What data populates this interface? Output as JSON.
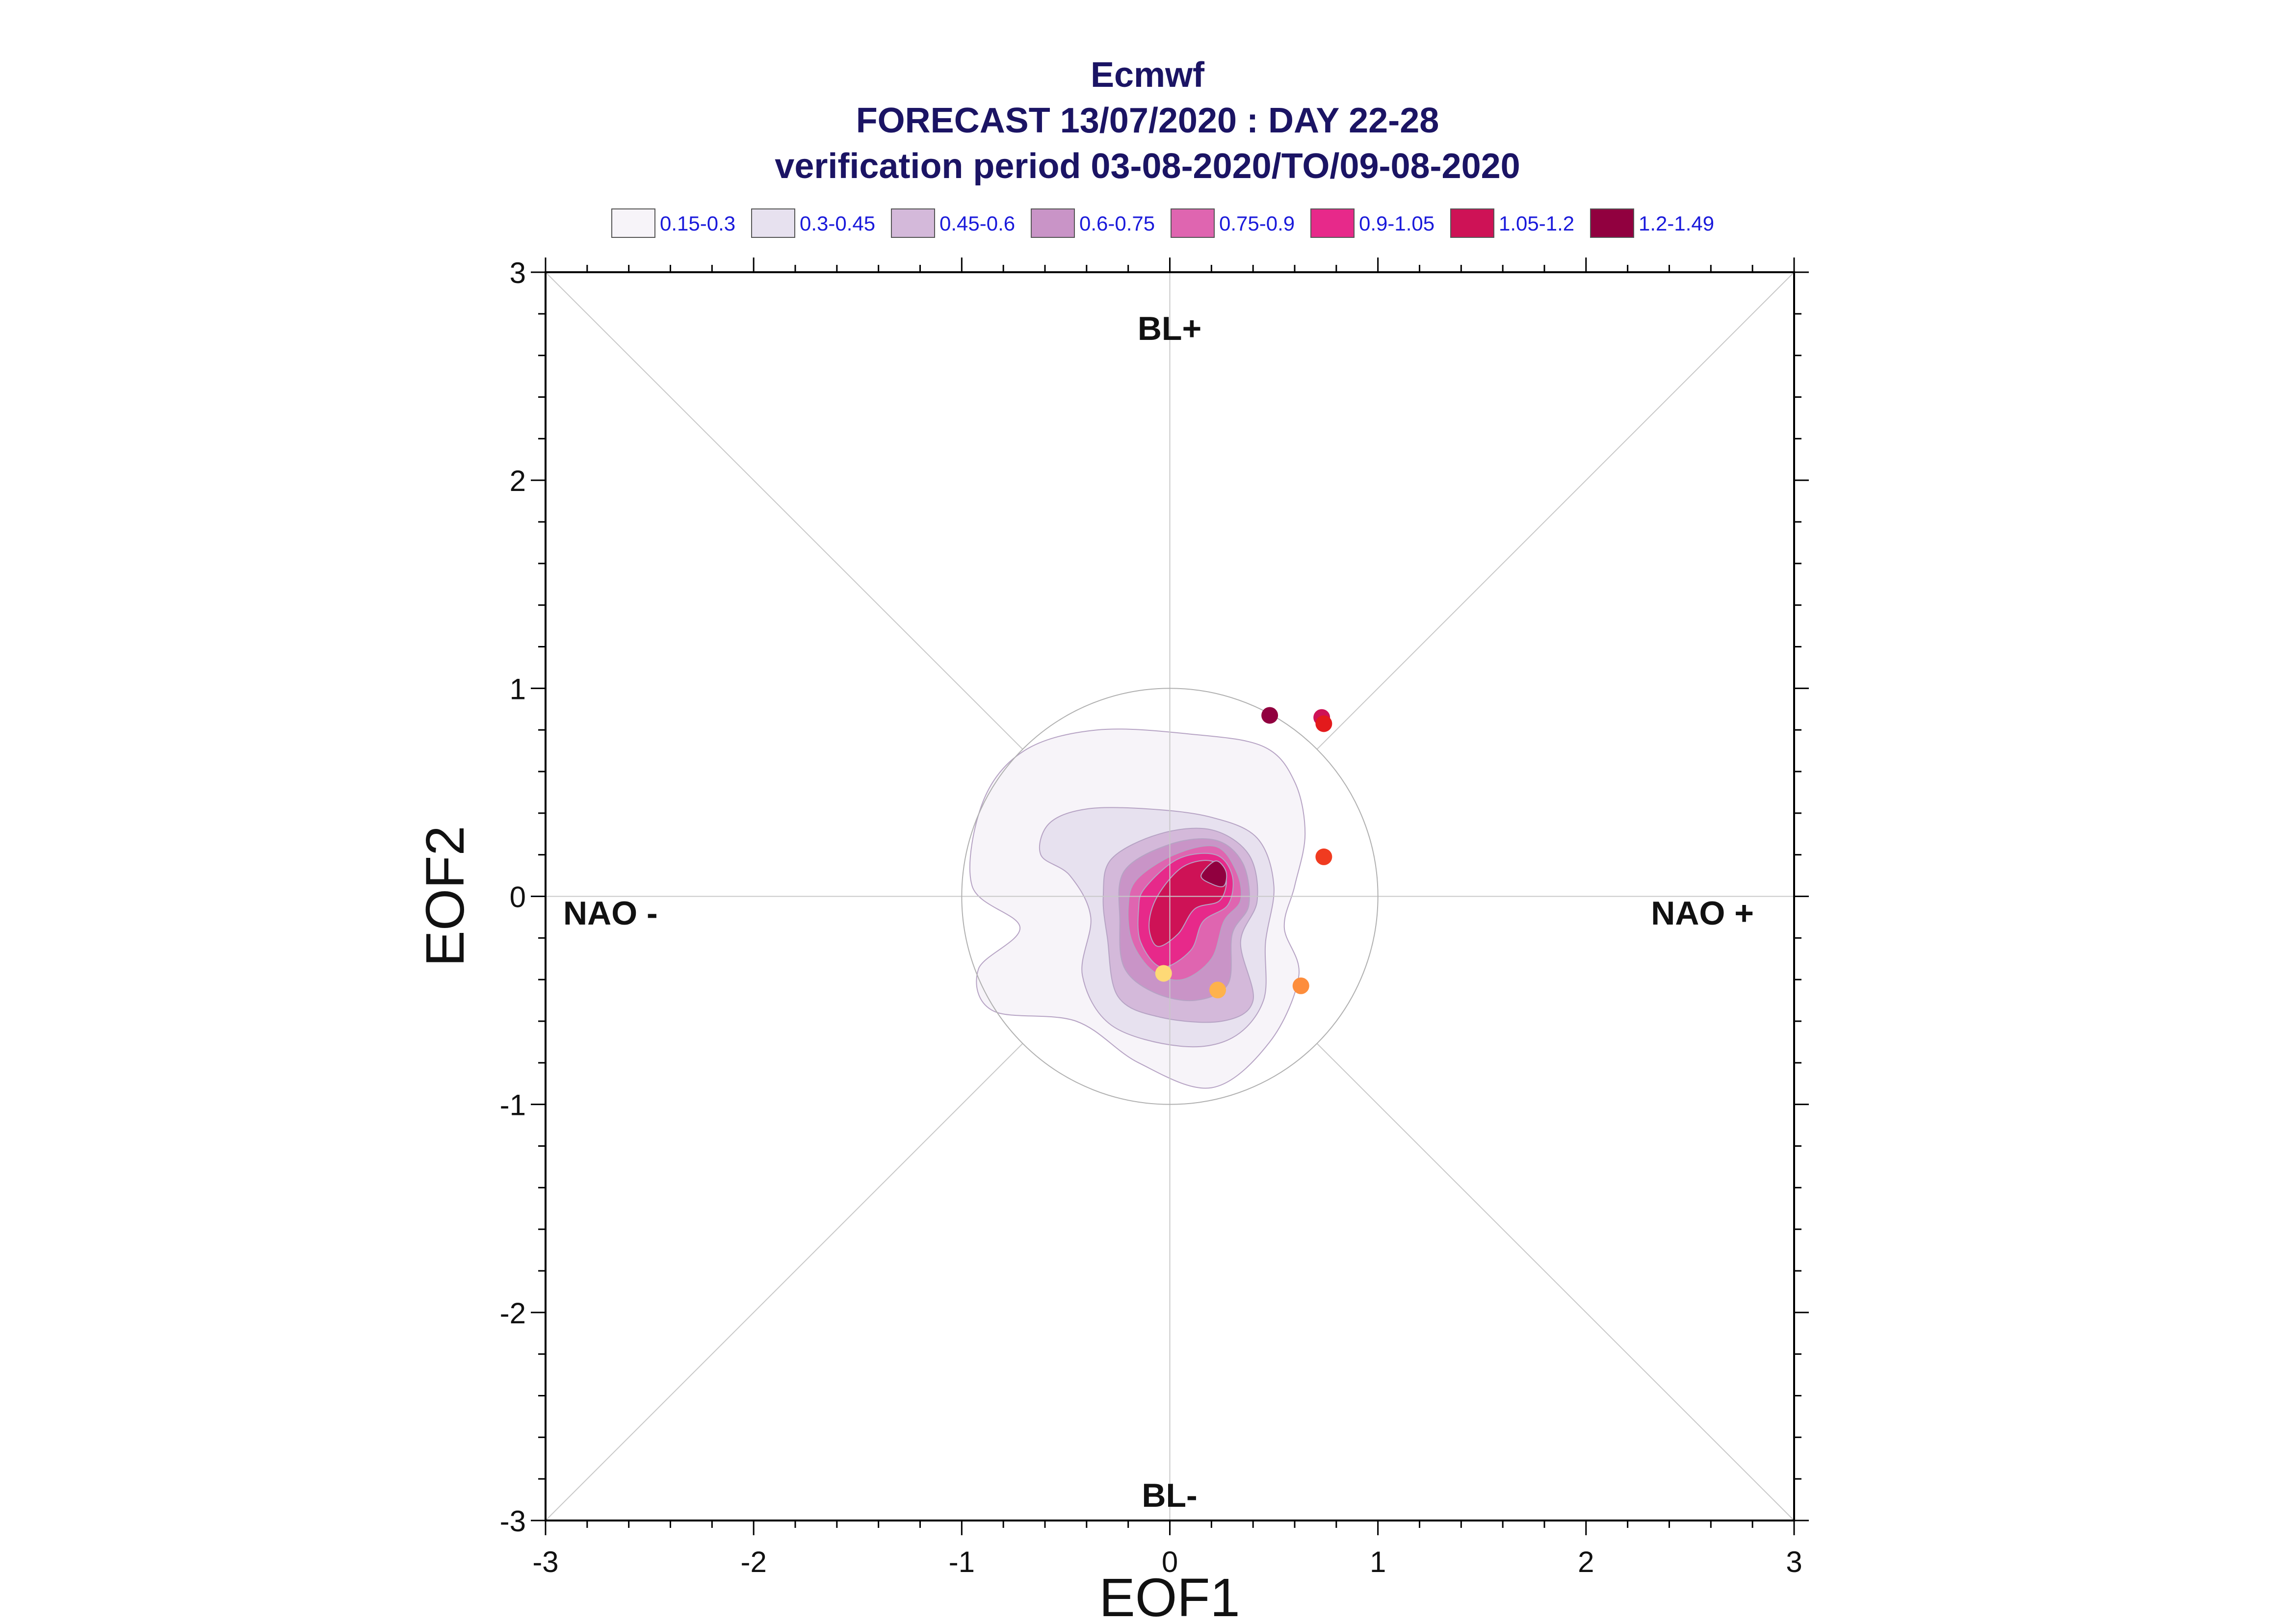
{
  "chart_data": {
    "type": "scatter",
    "title": "Ecmwf",
    "subtitle_lines": [
      "FORECAST 13/07/2020 : DAY 22-28",
      "verification period 03-08-2020/TO/09-08-2020"
    ],
    "xlabel": "EOF1",
    "ylabel": "EOF2",
    "xlim": [
      -3,
      3
    ],
    "ylim": [
      -3,
      3
    ],
    "x_ticks": [
      "-3",
      "-2",
      "-1",
      "0",
      "1",
      "2",
      "3"
    ],
    "y_ticks": [
      "-3",
      "-2",
      "-1",
      "0",
      "1",
      "2",
      "3"
    ],
    "regime_labels": {
      "top": "BL+",
      "bottom": "BL-",
      "left": "NAO -",
      "right": "NAO +"
    },
    "reference_circle_radius": 1,
    "legend": [
      {
        "label": "0.15-0.3",
        "color": "#f7f4f9"
      },
      {
        "label": "0.3-0.45",
        "color": "#e7e1ef"
      },
      {
        "label": "0.45-0.6",
        "color": "#d4b9da"
      },
      {
        "label": "0.6-0.75",
        "color": "#c994c7"
      },
      {
        "label": "0.75-0.9",
        "color": "#df65b0"
      },
      {
        "label": "0.9-1.05",
        "color": "#e7298a"
      },
      {
        "label": "1.05-1.2",
        "color": "#ce1256"
      },
      {
        "label": "1.2-1.49",
        "color": "#91003f"
      }
    ],
    "density_contours": [
      {
        "level": "0.15-0.3",
        "color": "#f7f4f9",
        "points": [
          [
            -0.95,
            0.05
          ],
          [
            -0.9,
            0.45
          ],
          [
            -0.7,
            0.7
          ],
          [
            -0.35,
            0.8
          ],
          [
            0.1,
            0.78
          ],
          [
            0.45,
            0.72
          ],
          [
            0.6,
            0.55
          ],
          [
            0.65,
            0.3
          ],
          [
            0.6,
            0.05
          ],
          [
            0.55,
            -0.15
          ],
          [
            0.62,
            -0.38
          ],
          [
            0.48,
            -0.7
          ],
          [
            0.2,
            -0.92
          ],
          [
            -0.15,
            -0.8
          ],
          [
            -0.45,
            -0.6
          ],
          [
            -0.85,
            -0.55
          ],
          [
            -0.92,
            -0.35
          ],
          [
            -0.72,
            -0.15
          ]
        ]
      },
      {
        "level": "0.3-0.45",
        "color": "#e7e1ef",
        "points": [
          [
            -0.58,
            0.35
          ],
          [
            -0.4,
            0.42
          ],
          [
            -0.1,
            0.42
          ],
          [
            0.2,
            0.38
          ],
          [
            0.42,
            0.28
          ],
          [
            0.5,
            0.05
          ],
          [
            0.46,
            -0.22
          ],
          [
            0.45,
            -0.5
          ],
          [
            0.3,
            -0.68
          ],
          [
            0.05,
            -0.72
          ],
          [
            -0.28,
            -0.62
          ],
          [
            -0.42,
            -0.38
          ],
          [
            -0.38,
            -0.1
          ],
          [
            -0.48,
            0.1
          ],
          [
            -0.62,
            0.2
          ]
        ]
      },
      {
        "level": "0.45-0.6",
        "color": "#d4b9da",
        "points": [
          [
            -0.28,
            0.18
          ],
          [
            -0.05,
            0.3
          ],
          [
            0.2,
            0.32
          ],
          [
            0.38,
            0.2
          ],
          [
            0.42,
            -0.02
          ],
          [
            0.34,
            -0.22
          ],
          [
            0.4,
            -0.5
          ],
          [
            0.25,
            -0.6
          ],
          [
            -0.05,
            -0.58
          ],
          [
            -0.25,
            -0.48
          ],
          [
            -0.3,
            -0.2
          ],
          [
            -0.32,
            0.0
          ]
        ]
      },
      {
        "level": "0.6-0.75",
        "color": "#c994c7",
        "points": [
          [
            -0.22,
            0.12
          ],
          [
            0.0,
            0.25
          ],
          [
            0.22,
            0.27
          ],
          [
            0.35,
            0.16
          ],
          [
            0.38,
            -0.04
          ],
          [
            0.3,
            -0.18
          ],
          [
            0.28,
            -0.42
          ],
          [
            0.12,
            -0.5
          ],
          [
            -0.08,
            -0.46
          ],
          [
            -0.22,
            -0.34
          ],
          [
            -0.24,
            -0.12
          ]
        ]
      },
      {
        "level": "0.75-0.9",
        "color": "#df65b0",
        "points": [
          [
            -0.16,
            0.08
          ],
          [
            0.02,
            0.2
          ],
          [
            0.22,
            0.24
          ],
          [
            0.32,
            0.12
          ],
          [
            0.34,
            -0.02
          ],
          [
            0.26,
            -0.12
          ],
          [
            0.2,
            -0.3
          ],
          [
            0.06,
            -0.4
          ],
          [
            -0.08,
            -0.36
          ],
          [
            -0.18,
            -0.22
          ],
          [
            -0.2,
            -0.05
          ]
        ]
      },
      {
        "level": "0.9-1.05",
        "color": "#e7298a",
        "points": [
          [
            -0.12,
            0.04
          ],
          [
            0.04,
            0.18
          ],
          [
            0.22,
            0.2
          ],
          [
            0.3,
            0.1
          ],
          [
            0.28,
            -0.04
          ],
          [
            0.16,
            -0.12
          ],
          [
            0.1,
            -0.26
          ],
          [
            -0.04,
            -0.34
          ],
          [
            -0.14,
            -0.22
          ],
          [
            -0.15,
            -0.06
          ]
        ]
      },
      {
        "level": "1.05-1.2",
        "color": "#ce1256",
        "points": [
          [
            -0.06,
            0.0
          ],
          [
            0.06,
            0.14
          ],
          [
            0.2,
            0.17
          ],
          [
            0.27,
            0.09
          ],
          [
            0.24,
            -0.02
          ],
          [
            0.12,
            -0.06
          ],
          [
            0.04,
            -0.18
          ],
          [
            -0.06,
            -0.24
          ],
          [
            -0.1,
            -0.14
          ]
        ]
      },
      {
        "level": "1.2-1.49",
        "color": "#91003f",
        "points": [
          [
            0.15,
            0.1
          ],
          [
            0.22,
            0.17
          ],
          [
            0.27,
            0.12
          ],
          [
            0.26,
            0.05
          ],
          [
            0.2,
            0.06
          ]
        ]
      }
    ],
    "series": [
      {
        "x": 0.48,
        "y": 0.87,
        "color": "#91003f"
      },
      {
        "x": 0.73,
        "y": 0.86,
        "color": "#ce1256"
      },
      {
        "x": 0.74,
        "y": 0.83,
        "color": "#e31a1c"
      },
      {
        "x": 0.74,
        "y": 0.19,
        "color": "#f03b20"
      },
      {
        "x": 0.63,
        "y": -0.43,
        "color": "#fd8d3c"
      },
      {
        "x": 0.23,
        "y": -0.45,
        "color": "#feb24c"
      },
      {
        "x": -0.03,
        "y": -0.37,
        "color": "#fed976"
      }
    ],
    "grid": false,
    "legend_position": "top"
  }
}
